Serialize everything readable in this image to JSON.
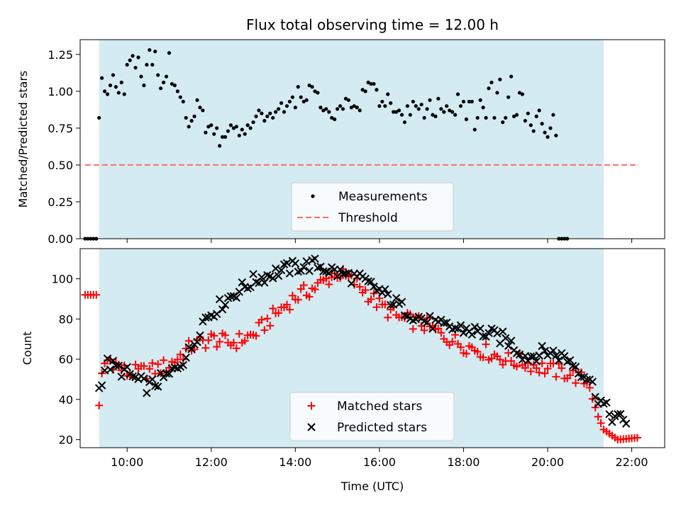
{
  "chart_data": [
    {
      "type": "scatter",
      "title": "Flux total observing time = 12.00 h",
      "xlabel": "",
      "ylabel": "Matched/Predicted stars",
      "xlim": [
        "08:53",
        "22:47"
      ],
      "ylim": [
        0,
        1.35
      ],
      "yticks": [
        "0.00",
        "0.25",
        "0.50",
        "0.75",
        "1.00",
        "1.25"
      ],
      "x_format": "HH:MM (UTC)",
      "observing_window": [
        "09:20",
        "21:20"
      ],
      "observing_window_color": "#d4ebf2",
      "legend_position": "lower-center",
      "grid": false,
      "series": [
        {
          "name": "Measurements",
          "marker": "dot",
          "color": "#000000",
          "points": [
            [
              "09:00",
              0
            ],
            [
              "09:04",
              0
            ],
            [
              "09:08",
              0
            ],
            [
              "09:12",
              0
            ],
            [
              "09:16",
              0
            ],
            [
              "09:20",
              0.82
            ],
            [
              "09:24",
              1.09
            ],
            [
              "09:28",
              1.0
            ],
            [
              "09:32",
              0.98
            ],
            [
              "09:36",
              1.04
            ],
            [
              "09:40",
              1.11
            ],
            [
              "09:44",
              1.03
            ],
            [
              "09:48",
              0.99
            ],
            [
              "09:52",
              1.06
            ],
            [
              "09:56",
              0.98
            ],
            [
              "10:00",
              1.18
            ],
            [
              "10:04",
              1.21
            ],
            [
              "10:08",
              1.24
            ],
            [
              "10:12",
              1.16
            ],
            [
              "10:16",
              1.23
            ],
            [
              "10:20",
              1.1
            ],
            [
              "10:24",
              1.04
            ],
            [
              "10:28",
              1.18
            ],
            [
              "10:32",
              1.28
            ],
            [
              "10:36",
              1.18
            ],
            [
              "10:40",
              1.27
            ],
            [
              "10:44",
              1.11
            ],
            [
              "10:48",
              1.02
            ],
            [
              "10:52",
              1.06
            ],
            [
              "10:56",
              1.1
            ],
            [
              "11:00",
              1.26
            ],
            [
              "11:04",
              1.05
            ],
            [
              "11:08",
              1.04
            ],
            [
              "11:12",
              1.0
            ],
            [
              "11:16",
              0.96
            ],
            [
              "11:20",
              0.93
            ],
            [
              "11:24",
              0.82
            ],
            [
              "11:28",
              0.76
            ],
            [
              "11:32",
              0.8
            ],
            [
              "11:36",
              0.83
            ],
            [
              "11:40",
              0.94
            ],
            [
              "11:44",
              0.89
            ],
            [
              "11:48",
              0.87
            ],
            [
              "11:52",
              0.72
            ],
            [
              "11:56",
              0.76
            ],
            [
              "12:00",
              0.77
            ],
            [
              "12:04",
              0.71
            ],
            [
              "12:08",
              0.75
            ],
            [
              "12:12",
              0.63
            ],
            [
              "12:16",
              0.69
            ],
            [
              "12:20",
              0.69
            ],
            [
              "12:24",
              0.73
            ],
            [
              "12:28",
              0.77
            ],
            [
              "12:32",
              0.75
            ],
            [
              "12:36",
              0.76
            ],
            [
              "12:40",
              0.7
            ],
            [
              "12:44",
              0.74
            ],
            [
              "12:48",
              0.71
            ],
            [
              "12:52",
              0.77
            ],
            [
              "12:56",
              0.75
            ],
            [
              "13:00",
              0.79
            ],
            [
              "13:04",
              0.83
            ],
            [
              "13:08",
              0.87
            ],
            [
              "13:12",
              0.85
            ],
            [
              "13:16",
              0.8
            ],
            [
              "13:20",
              0.83
            ],
            [
              "13:24",
              0.85
            ],
            [
              "13:28",
              0.82
            ],
            [
              "13:32",
              0.86
            ],
            [
              "13:36",
              0.88
            ],
            [
              "13:40",
              0.92
            ],
            [
              "13:44",
              0.86
            ],
            [
              "13:48",
              0.9
            ],
            [
              "13:52",
              0.93
            ],
            [
              "13:56",
              0.96
            ],
            [
              "14:00",
              0.89
            ],
            [
              "14:04",
              1.03
            ],
            [
              "14:08",
              0.96
            ],
            [
              "14:12",
              0.93
            ],
            [
              "14:16",
              0.94
            ],
            [
              "14:20",
              1.04
            ],
            [
              "14:24",
              1.03
            ],
            [
              "14:28",
              1.0
            ],
            [
              "14:32",
              0.99
            ],
            [
              "14:36",
              0.89
            ],
            [
              "14:40",
              0.87
            ],
            [
              "14:44",
              0.88
            ],
            [
              "14:48",
              0.86
            ],
            [
              "14:52",
              0.82
            ],
            [
              "14:56",
              0.81
            ],
            [
              "15:00",
              0.88
            ],
            [
              "15:04",
              0.9
            ],
            [
              "15:08",
              0.88
            ],
            [
              "15:12",
              0.95
            ],
            [
              "15:16",
              0.94
            ],
            [
              "15:20",
              0.89
            ],
            [
              "15:24",
              0.9
            ],
            [
              "15:28",
              0.89
            ],
            [
              "15:32",
              0.87
            ],
            [
              "15:36",
              1.01
            ],
            [
              "15:40",
              1.0
            ],
            [
              "15:44",
              1.06
            ],
            [
              "15:48",
              1.05
            ],
            [
              "15:52",
              1.05
            ],
            [
              "15:56",
              1.01
            ],
            [
              "16:00",
              0.9
            ],
            [
              "16:04",
              0.93
            ],
            [
              "16:08",
              0.9
            ],
            [
              "16:12",
              0.98
            ],
            [
              "16:16",
              0.92
            ],
            [
              "16:20",
              0.86
            ],
            [
              "16:24",
              0.86
            ],
            [
              "16:28",
              0.87
            ],
            [
              "16:32",
              0.84
            ],
            [
              "16:36",
              0.79
            ],
            [
              "16:40",
              0.9
            ],
            [
              "16:44",
              0.84
            ],
            [
              "16:48",
              0.93
            ],
            [
              "16:52",
              0.9
            ],
            [
              "16:56",
              0.88
            ],
            [
              "17:00",
              0.91
            ],
            [
              "17:04",
              0.82
            ],
            [
              "17:08",
              0.88
            ],
            [
              "17:12",
              0.94
            ],
            [
              "17:16",
              0.84
            ],
            [
              "17:20",
              0.83
            ],
            [
              "17:24",
              0.95
            ],
            [
              "17:28",
              0.88
            ],
            [
              "17:32",
              0.86
            ],
            [
              "17:36",
              0.9
            ],
            [
              "17:40",
              0.87
            ],
            [
              "17:44",
              0.86
            ],
            [
              "17:48",
              0.84
            ],
            [
              "17:52",
              0.98
            ],
            [
              "17:56",
              0.9
            ],
            [
              "18:00",
              0.93
            ],
            [
              "18:04",
              0.81
            ],
            [
              "18:08",
              0.93
            ],
            [
              "18:12",
              0.93
            ],
            [
              "18:16",
              0.74
            ],
            [
              "18:20",
              0.82
            ],
            [
              "18:24",
              0.94
            ],
            [
              "18:28",
              0.89
            ],
            [
              "18:32",
              0.82
            ],
            [
              "18:36",
              1.02
            ],
            [
              "18:40",
              1.06
            ],
            [
              "18:44",
              0.82
            ],
            [
              "18:48",
              0.99
            ],
            [
              "18:52",
              1.08
            ],
            [
              "18:56",
              0.79
            ],
            [
              "19:00",
              0.82
            ],
            [
              "19:04",
              0.96
            ],
            [
              "19:08",
              1.1
            ],
            [
              "19:12",
              0.83
            ],
            [
              "19:16",
              0.84
            ],
            [
              "19:20",
              0.99
            ],
            [
              "19:24",
              0.98
            ],
            [
              "19:28",
              0.8
            ],
            [
              "19:32",
              0.85
            ],
            [
              "19:36",
              0.77
            ],
            [
              "19:40",
              0.73
            ],
            [
              "19:44",
              0.83
            ],
            [
              "19:48",
              0.87
            ],
            [
              "19:52",
              0.78
            ],
            [
              "19:56",
              0.72
            ],
            [
              "20:00",
              0.69
            ],
            [
              "20:04",
              0.75
            ],
            [
              "20:08",
              0.84
            ],
            [
              "20:12",
              0.7
            ],
            [
              "20:16",
              0
            ],
            [
              "20:20",
              0
            ],
            [
              "20:24",
              0
            ],
            [
              "20:28",
              0
            ]
          ]
        },
        {
          "name": "Threshold",
          "marker": "dashed-line",
          "color": "#ff6b6b",
          "points": [
            [
              "09:00",
              0.5
            ],
            [
              "22:10",
              0.5
            ]
          ]
        }
      ]
    },
    {
      "type": "scatter",
      "title": "",
      "xlabel": "Time (UTC)",
      "ylabel": "Count",
      "xlim": [
        "08:53",
        "22:47"
      ],
      "ylim": [
        16,
        115
      ],
      "yticks": [
        "20",
        "40",
        "60",
        "80",
        "100"
      ],
      "xticks": [
        "10:00",
        "12:00",
        "14:00",
        "16:00",
        "18:00",
        "20:00",
        "22:00"
      ],
      "observing_window": [
        "09:20",
        "21:20"
      ],
      "observing_window_color": "#d4ebf2",
      "legend_position": "lower-center",
      "grid": false,
      "series": [
        {
          "name": "Matched stars",
          "marker": "plus",
          "color": "#ff0000",
          "trend": [
            [
              "09:00",
              92
            ],
            [
              "09:18",
              92
            ],
            [
              "09:20",
              37
            ],
            [
              "09:25",
              57
            ],
            [
              "09:35",
              60
            ],
            [
              "10:00",
              53
            ],
            [
              "10:30",
              54
            ],
            [
              "11:00",
              57
            ],
            [
              "11:30",
              66
            ],
            [
              "12:00",
              70
            ],
            [
              "12:30",
              68
            ],
            [
              "13:00",
              72
            ],
            [
              "13:30",
              82
            ],
            [
              "14:00",
              91
            ],
            [
              "14:30",
              96
            ],
            [
              "15:00",
              103
            ],
            [
              "15:30",
              97
            ],
            [
              "16:00",
              87
            ],
            [
              "16:30",
              80
            ],
            [
              "17:00",
              78
            ],
            [
              "17:30",
              72
            ],
            [
              "18:00",
              67
            ],
            [
              "18:30",
              64
            ],
            [
              "19:00",
              60
            ],
            [
              "19:30",
              58
            ],
            [
              "20:00",
              55
            ],
            [
              "20:30",
              53
            ],
            [
              "21:00",
              48
            ],
            [
              "21:10",
              33
            ],
            [
              "21:20",
              25
            ],
            [
              "21:40",
              20
            ],
            [
              "22:10",
              21
            ]
          ]
        },
        {
          "name": "Predicted stars",
          "marker": "x",
          "color": "#000000",
          "trend": [
            [
              "09:20",
              45
            ],
            [
              "09:30",
              58
            ],
            [
              "10:00",
              53
            ],
            [
              "10:30",
              46
            ],
            [
              "11:00",
              52
            ],
            [
              "11:30",
              64
            ],
            [
              "11:50",
              80
            ],
            [
              "12:30",
              92
            ],
            [
              "13:00",
              99
            ],
            [
              "13:30",
              103
            ],
            [
              "14:00",
              106
            ],
            [
              "14:30",
              107
            ],
            [
              "15:00",
              103
            ],
            [
              "15:30",
              100
            ],
            [
              "16:00",
              94
            ],
            [
              "16:30",
              86
            ],
            [
              "17:00",
              80
            ],
            [
              "17:30",
              76
            ],
            [
              "18:00",
              75
            ],
            [
              "18:30",
              73
            ],
            [
              "19:00",
              70
            ],
            [
              "19:30",
              61
            ],
            [
              "20:00",
              64
            ],
            [
              "20:30",
              60
            ],
            [
              "21:00",
              50
            ],
            [
              "21:10",
              42
            ],
            [
              "21:30",
              32
            ],
            [
              "21:50",
              29
            ],
            [
              "21:55",
              30
            ]
          ]
        }
      ]
    }
  ]
}
